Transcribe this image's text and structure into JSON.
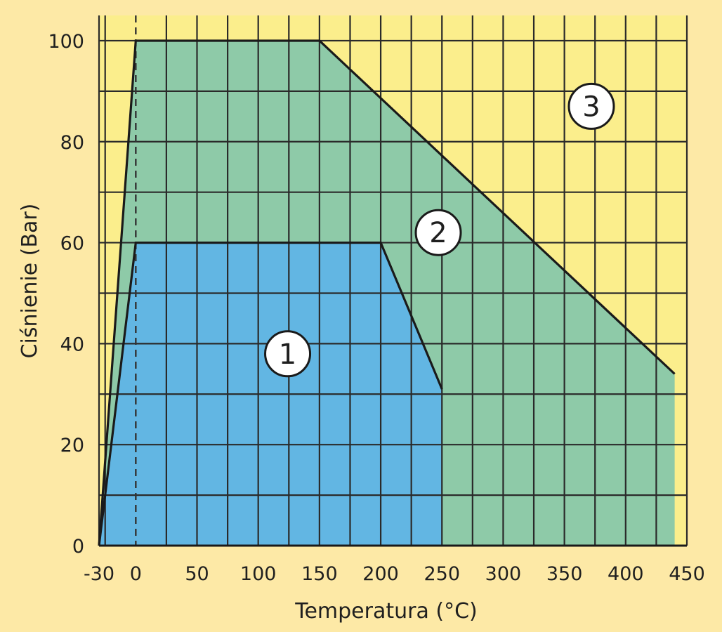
{
  "chart_data": {
    "type": "area",
    "title": "",
    "xlabel": "Temperatura (°C)",
    "ylabel": "Ciśnienie (Bar)",
    "xlim": [
      -30,
      450
    ],
    "ylim": [
      0,
      105
    ],
    "x_ticks": [
      -30,
      0,
      50,
      100,
      150,
      200,
      250,
      300,
      350,
      400,
      450
    ],
    "x_tick_labels": [
      "-30",
      "0",
      "50",
      "100",
      "150",
      "200",
      "250",
      "300",
      "350",
      "400",
      "450"
    ],
    "y_ticks": [
      0,
      20,
      40,
      60,
      80,
      100
    ],
    "y_tick_labels": [
      "0",
      "20",
      "40",
      "60",
      "80",
      "100"
    ],
    "grid": true,
    "colors": {
      "background": "#fde9a6",
      "plot_area": "#fbee8c",
      "region_1": "#62b6e3",
      "region_2": "#8ecaa8",
      "grid": "#2a2a2a"
    },
    "regions": [
      {
        "label": "1",
        "color": "#62b6e3",
        "points": [
          [
            -30,
            0
          ],
          [
            0,
            60
          ],
          [
            200,
            60
          ],
          [
            250,
            31
          ],
          [
            250,
            0
          ]
        ],
        "label_at": [
          124,
          38
        ]
      },
      {
        "label": "2",
        "color": "#8ecaa8",
        "points": [
          [
            -30,
            0
          ],
          [
            0,
            100
          ],
          [
            150,
            100
          ],
          [
            440,
            34
          ],
          [
            440,
            0
          ]
        ],
        "label_at": [
          247,
          62
        ]
      },
      {
        "label": "3",
        "color": "#fbee8c",
        "points": [
          [
            -30,
            0
          ],
          [
            -30,
            105
          ],
          [
            450,
            105
          ],
          [
            450,
            0
          ]
        ],
        "label_at": [
          372,
          87
        ]
      }
    ],
    "reference_line": {
      "x": 0,
      "style": "dashed"
    }
  }
}
